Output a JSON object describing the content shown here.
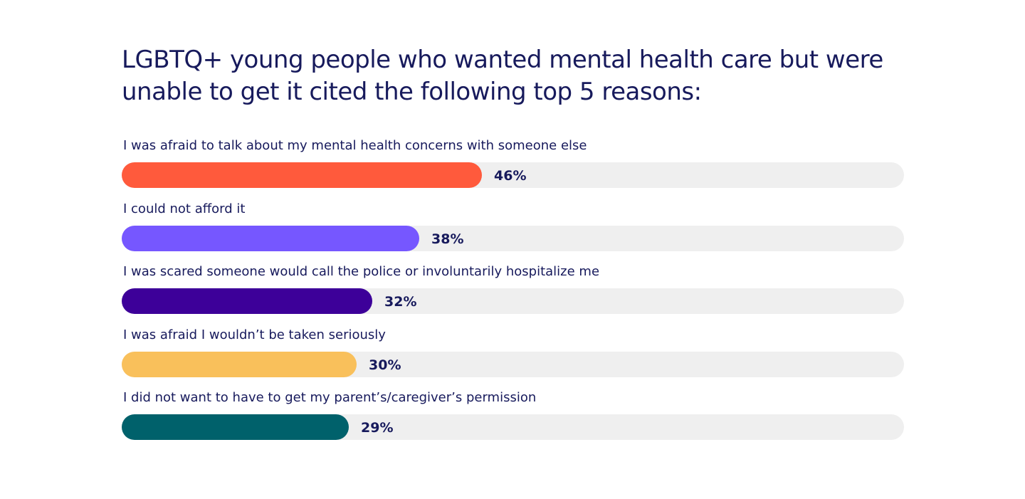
{
  "chart_data": {
    "type": "bar",
    "orientation": "horizontal",
    "title": "LGBTQ+ young people who wanted mental health care but were unable to get it cited the following top 5 reasons:",
    "xlim": [
      0,
      100
    ],
    "grid": false,
    "categories": [
      "I was afraid to talk about my mental health concerns with someone else",
      "I could not afford it",
      "I was scared someone would call the police or involuntarily hospitalize me",
      "I was afraid I wouldn’t be taken seriously",
      "I did not want to have to get my parent’s/caregiver’s permission"
    ],
    "values": [
      46,
      38,
      32,
      30,
      29
    ],
    "value_labels": [
      "46%",
      "38%",
      "32%",
      "30%",
      "29%"
    ],
    "colors": [
      "#ff5a3c",
      "#7657ff",
      "#3d0099",
      "#f9c05b",
      "#00616b"
    ],
    "track_color": "#efefef",
    "text_color": "#171a5c"
  }
}
